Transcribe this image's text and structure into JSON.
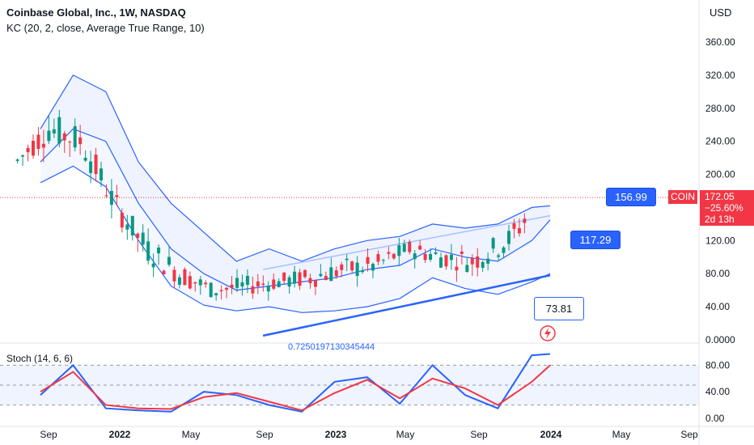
{
  "header": {
    "title": "Coinbase Global, Inc., 1W, NASDAQ",
    "indicator": "KC (20, 2, close, Average True Range, 10)"
  },
  "currency": "USD",
  "stoch_label": "Stoch (14, 6, 6)",
  "price_tag": {
    "symbol": "COIN",
    "price": "172.05",
    "change": "−25.60%",
    "countdown": "2d 13h"
  },
  "annotations": {
    "upper": "156.99",
    "middle": "117.29",
    "lower": "73.81",
    "baseline_text": "0.7250197130345444"
  },
  "colors": {
    "up": "#089981",
    "down": "#f23645",
    "stoch_k": "#2962ff",
    "stoch_d": "#f23645",
    "keltner": "#2962ff",
    "trendline": "#2962ff"
  },
  "chart_data": {
    "type": "candlestick",
    "y_ticks": [
      "360.00",
      "320.00",
      "280.00",
      "240.00",
      "200.00",
      "160.00",
      "120.00",
      "80.00",
      "40.00",
      "0.0000"
    ],
    "ylim": [
      0,
      380
    ],
    "x_ticks": [
      "Sep",
      "2022",
      "May",
      "Sep",
      "2023",
      "May",
      "Sep",
      "2024",
      "May",
      "Sep"
    ],
    "stoch_ticks": [
      "80.00",
      "40.00",
      "0.00"
    ],
    "stoch_ylim": [
      0,
      100
    ],
    "last_close": 172.05,
    "keltner": {
      "upper": [
        [
          0.0,
          255
        ],
        [
          0.125,
          320
        ],
        [
          0.25,
          300
        ],
        [
          0.375,
          215
        ],
        [
          0.5,
          165
        ],
        [
          0.625,
          130
        ],
        [
          0.75,
          95
        ],
        [
          0.875,
          110
        ],
        [
          1.0,
          95
        ],
        [
          1.125,
          110
        ],
        [
          1.25,
          120
        ],
        [
          1.375,
          125
        ],
        [
          1.5,
          140
        ],
        [
          1.625,
          135
        ],
        [
          1.75,
          140
        ],
        [
          1.88,
          160
        ],
        [
          1.95,
          162
        ]
      ],
      "middle": [
        [
          0.0,
          215
        ],
        [
          0.125,
          255
        ],
        [
          0.25,
          240
        ],
        [
          0.375,
          165
        ],
        [
          0.5,
          110
        ],
        [
          0.625,
          80
        ],
        [
          0.75,
          60
        ],
        [
          0.875,
          65
        ],
        [
          1.0,
          70
        ],
        [
          1.125,
          75
        ],
        [
          1.25,
          85
        ],
        [
          1.375,
          90
        ],
        [
          1.5,
          110
        ],
        [
          1.625,
          100
        ],
        [
          1.75,
          95
        ],
        [
          1.88,
          120
        ],
        [
          1.95,
          145
        ]
      ],
      "lower": [
        [
          0.0,
          190
        ],
        [
          0.125,
          210
        ],
        [
          0.25,
          185
        ],
        [
          0.375,
          120
        ],
        [
          0.5,
          65
        ],
        [
          0.625,
          42
        ],
        [
          0.75,
          35
        ],
        [
          0.875,
          40
        ],
        [
          1.0,
          33
        ],
        [
          1.125,
          35
        ],
        [
          1.25,
          40
        ],
        [
          1.375,
          50
        ],
        [
          1.5,
          75
        ],
        [
          1.625,
          62
        ],
        [
          1.75,
          55
        ],
        [
          1.88,
          70
        ],
        [
          1.95,
          80
        ]
      ]
    },
    "stoch": {
      "k": [
        [
          0.0,
          35
        ],
        [
          0.125,
          80
        ],
        [
          0.25,
          15
        ],
        [
          0.375,
          12
        ],
        [
          0.5,
          10
        ],
        [
          0.625,
          40
        ],
        [
          0.75,
          35
        ],
        [
          0.875,
          20
        ],
        [
          1.0,
          10
        ],
        [
          1.125,
          55
        ],
        [
          1.25,
          62
        ],
        [
          1.375,
          22
        ],
        [
          1.5,
          80
        ],
        [
          1.625,
          35
        ],
        [
          1.75,
          15
        ],
        [
          1.88,
          95
        ],
        [
          1.95,
          97
        ]
      ],
      "d": [
        [
          0.0,
          40
        ],
        [
          0.125,
          70
        ],
        [
          0.25,
          20
        ],
        [
          0.375,
          15
        ],
        [
          0.5,
          14
        ],
        [
          0.625,
          32
        ],
        [
          0.75,
          38
        ],
        [
          0.875,
          25
        ],
        [
          1.0,
          12
        ],
        [
          1.125,
          38
        ],
        [
          1.25,
          58
        ],
        [
          1.375,
          30
        ],
        [
          1.5,
          60
        ],
        [
          1.625,
          45
        ],
        [
          1.75,
          20
        ],
        [
          1.88,
          55
        ],
        [
          1.95,
          80
        ]
      ]
    },
    "trendlines": [
      [
        [
          1.0,
          5
        ],
        [
          1.95,
          78
        ]
      ],
      [
        [
          1.0,
          85
        ],
        [
          1.95,
          150
        ]
      ]
    ]
  }
}
